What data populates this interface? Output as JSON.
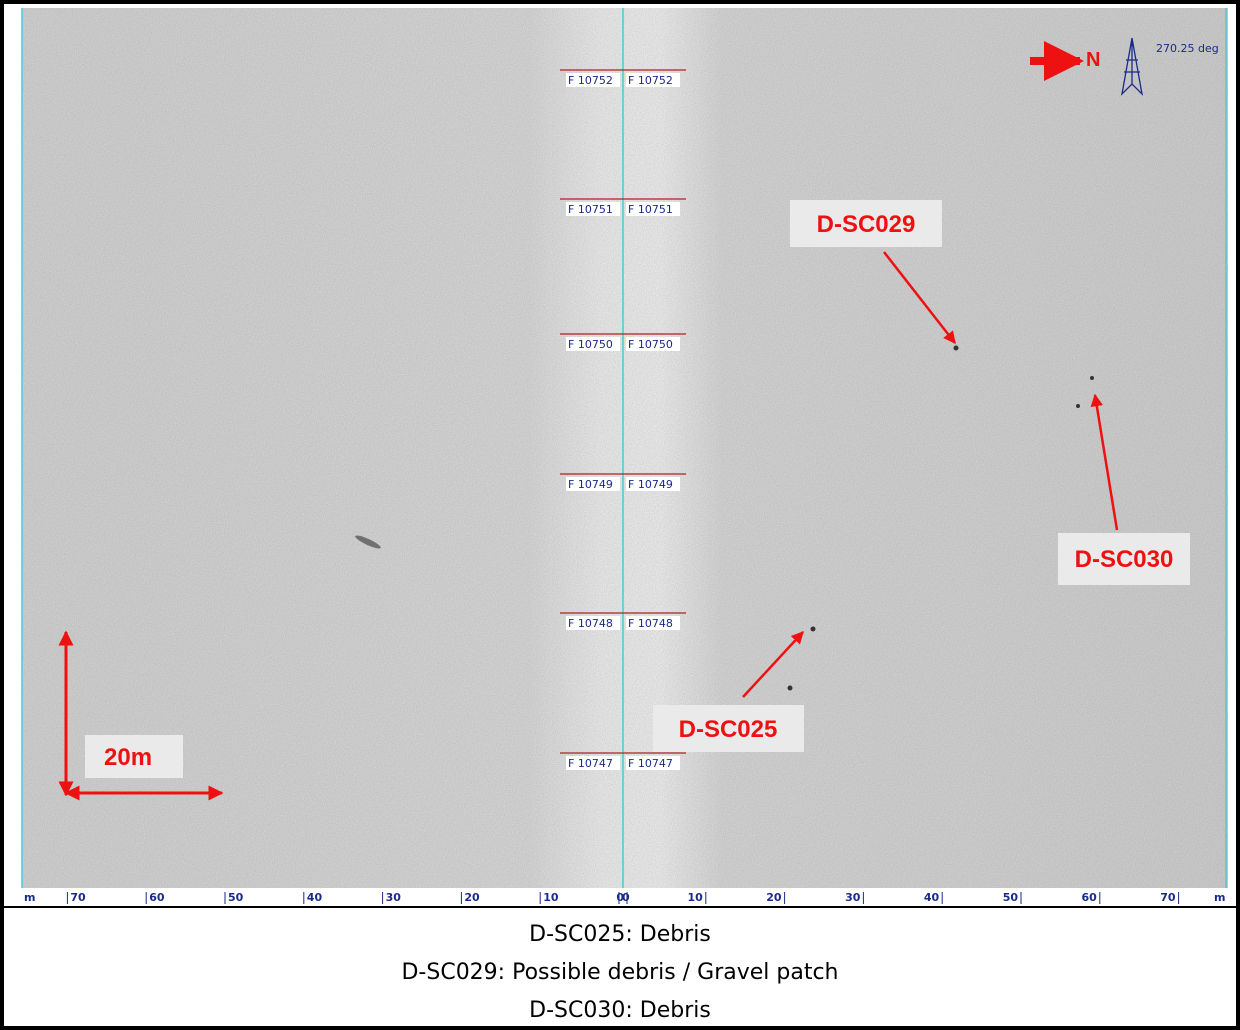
{
  "fixes": [
    "F 10752",
    "F 10751",
    "F 10750",
    "F 10749",
    "F 10748",
    "F 10747"
  ],
  "scale": {
    "unit": "m",
    "port": [
      70,
      60,
      50,
      40,
      30,
      20,
      10,
      0
    ],
    "starboard": [
      0,
      10,
      20,
      30,
      40,
      50,
      60,
      70
    ]
  },
  "north": {
    "label": "N",
    "heading": "270.25 deg"
  },
  "scale_bar": "20m",
  "targets": [
    "D-SC029",
    "D-SC030",
    "D-SC025"
  ],
  "caption": [
    "D-SC025: Debris",
    "D-SC029: Possible debris / Gravel patch",
    "D-SC030: Debris"
  ]
}
